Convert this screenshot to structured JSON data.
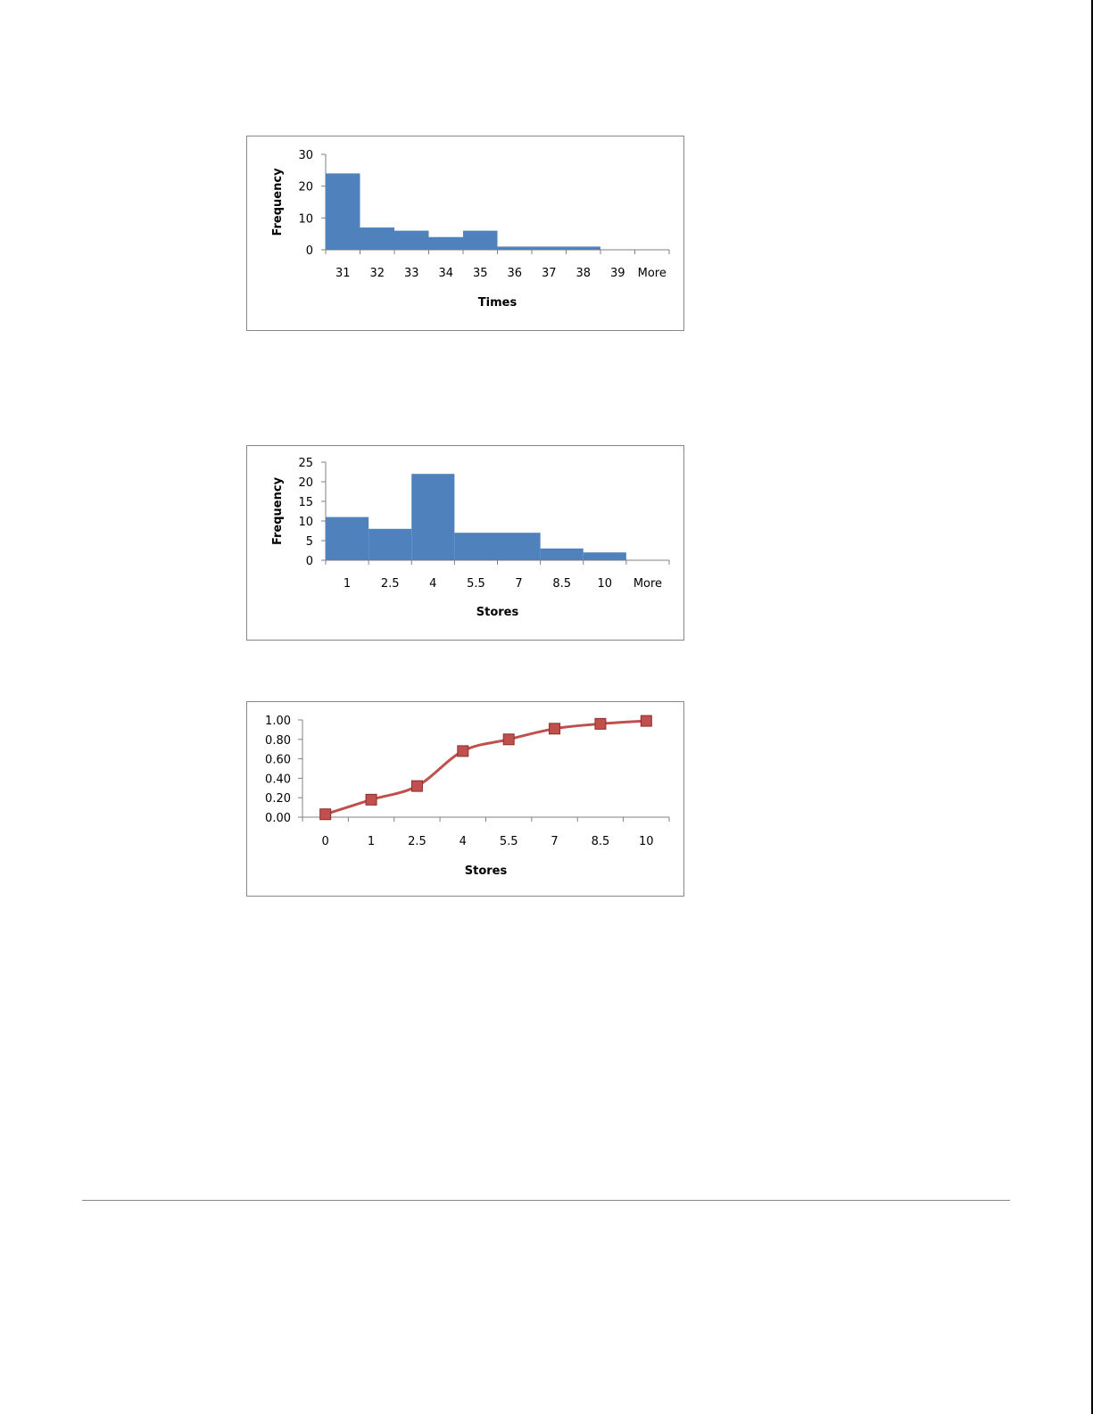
{
  "chart_data": [
    {
      "type": "bar",
      "categories": [
        "31",
        "32",
        "33",
        "34",
        "35",
        "36",
        "37",
        "38",
        "39",
        "More"
      ],
      "values": [
        24,
        7,
        6,
        4,
        6,
        1,
        1,
        1,
        0,
        0
      ],
      "xlabel": "Times",
      "ylabel": "Frequency",
      "ylim": [
        0,
        30
      ],
      "yticks": [
        "0",
        "10",
        "20",
        "30"
      ],
      "bar_color": "#4F81BD",
      "grid": false,
      "legend": "none"
    },
    {
      "type": "bar",
      "categories": [
        "1",
        "2.5",
        "4",
        "5.5",
        "7",
        "8.5",
        "10",
        "More"
      ],
      "values": [
        11,
        8,
        22,
        7,
        7,
        3,
        2,
        0
      ],
      "xlabel": "Stores",
      "ylabel": "Frequency",
      "ylim": [
        0,
        25
      ],
      "yticks": [
        "0",
        "5",
        "10",
        "15",
        "20",
        "25"
      ],
      "bar_color": "#4F81BD",
      "grid": false,
      "legend": "none"
    },
    {
      "type": "line",
      "categories": [
        "0",
        "1",
        "2.5",
        "4",
        "5.5",
        "7",
        "8.5",
        "10"
      ],
      "values": [
        0.03,
        0.18,
        0.32,
        0.68,
        0.8,
        0.91,
        0.96,
        0.99
      ],
      "xlabel": "Stores",
      "ylabel": "",
      "ylim": [
        0,
        1
      ],
      "yticks": [
        "0.00",
        "0.20",
        "0.40",
        "0.60",
        "0.80",
        "1.00"
      ],
      "line_color": "#C0504D",
      "marker": "square",
      "grid": false,
      "legend": "none"
    }
  ],
  "colors": {
    "frame_border": "#888888",
    "axis": "#808080",
    "page_background": "#FFFFFF"
  }
}
